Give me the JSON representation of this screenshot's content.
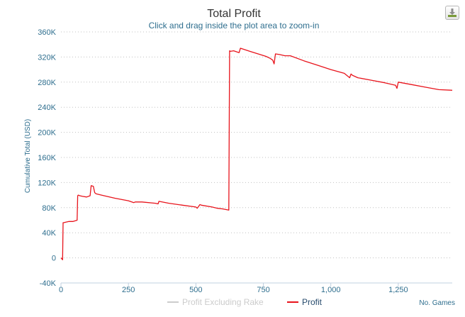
{
  "chart_data": {
    "type": "line",
    "title": "Total Profit",
    "subtitle": "Click and drag inside the plot area to zoom-in",
    "xlabel": "No. Games",
    "ylabel": "Cumulative Total (USD)",
    "xlim": [
      0,
      1450
    ],
    "ylim": [
      -40000,
      360000
    ],
    "x_ticks": [
      0,
      250,
      500,
      750,
      1000,
      1250
    ],
    "x_tick_labels": [
      "0",
      "250",
      "500",
      "750",
      "1,000",
      "1,250"
    ],
    "y_ticks": [
      -40000,
      0,
      40000,
      80000,
      120000,
      160000,
      200000,
      240000,
      280000,
      320000,
      360000
    ],
    "y_tick_labels": [
      "-40K",
      "0",
      "40K",
      "80K",
      "120K",
      "160K",
      "200K",
      "240K",
      "280K",
      "320K",
      "360K"
    ],
    "grid": "horizontal dotted",
    "legend_position": "bottom-center",
    "series": [
      {
        "name": "Profit Excluding Rake",
        "color": "#cccccc",
        "visible": false,
        "x": [],
        "y": []
      },
      {
        "name": "Profit",
        "color": "#e8141c",
        "visible": true,
        "x": [
          0,
          6,
          8,
          10,
          18,
          30,
          45,
          60,
          62,
          64,
          70,
          80,
          95,
          108,
          112,
          120,
          125,
          130,
          150,
          200,
          250,
          270,
          275,
          300,
          350,
          360,
          363,
          400,
          450,
          500,
          505,
          510,
          515,
          520,
          560,
          580,
          600,
          622,
          625,
          628,
          640,
          660,
          665,
          700,
          760,
          775,
          785,
          790,
          795,
          810,
          830,
          850,
          900,
          950,
          1000,
          1050,
          1070,
          1075,
          1080,
          1100,
          1150,
          1200,
          1240,
          1245,
          1250,
          1300,
          1350,
          1400,
          1450
        ],
        "y": [
          0,
          -3000,
          56000,
          56000,
          57000,
          58000,
          58000,
          60000,
          99000,
          100000,
          99000,
          98000,
          97000,
          99000,
          115000,
          114000,
          104000,
          102000,
          100000,
          95000,
          91000,
          88000,
          89000,
          89000,
          87000,
          86000,
          90000,
          87000,
          84000,
          81000,
          79000,
          82000,
          85000,
          84000,
          81000,
          79000,
          78000,
          76000,
          330000,
          329000,
          330000,
          327000,
          334000,
          329000,
          321000,
          318000,
          315000,
          309000,
          325000,
          324000,
          322000,
          322000,
          314000,
          307000,
          300000,
          294000,
          287000,
          293000,
          291000,
          287000,
          283000,
          279000,
          275000,
          270000,
          280000,
          276000,
          272000,
          268000,
          267000
        ]
      }
    ]
  },
  "ui": {
    "export_icon": "download-icon"
  }
}
